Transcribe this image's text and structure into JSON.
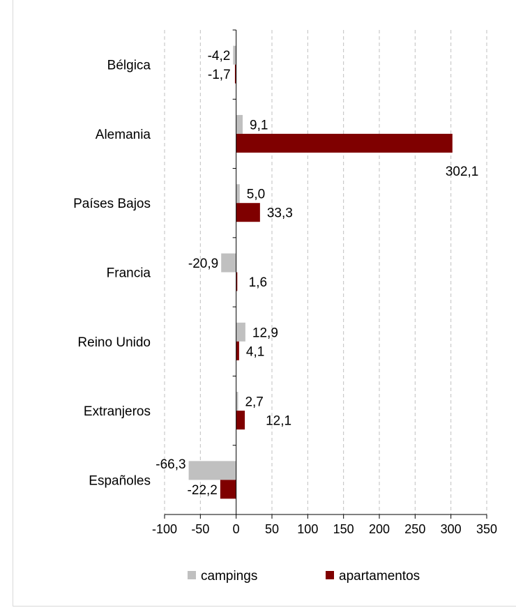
{
  "colors": {
    "campings": "#c0c0c0",
    "apartamentos": "#7f0000",
    "grid": "#bfbfbf",
    "axis": "#000000"
  },
  "chart_data": {
    "type": "bar",
    "orientation": "horizontal",
    "categories": [
      "Bélgica",
      "Alemania",
      "Países Bajos",
      "Francia",
      "Reino Unido",
      "Extranjeros",
      "Españoles"
    ],
    "series": [
      {
        "name": "campings",
        "values": [
          -4.2,
          9.1,
          5.0,
          -20.9,
          12.9,
          2.7,
          -66.3
        ],
        "labels": [
          "-4,2",
          "9,1",
          "5,0",
          "-20,9",
          "12,9",
          "2,7",
          "-66,3"
        ]
      },
      {
        "name": "apartamentos",
        "values": [
          -1.7,
          302.1,
          33.3,
          1.6,
          4.1,
          12.1,
          -22.2
        ],
        "labels": [
          "-1,7",
          "302,1",
          "33,3",
          "1,6",
          "4,1",
          "12,1",
          "-22,2"
        ]
      }
    ],
    "xlim": [
      -100,
      350
    ],
    "xticks": [
      -100,
      -50,
      0,
      50,
      100,
      150,
      200,
      250,
      300,
      350
    ],
    "grid": true,
    "legend": "bottom"
  }
}
